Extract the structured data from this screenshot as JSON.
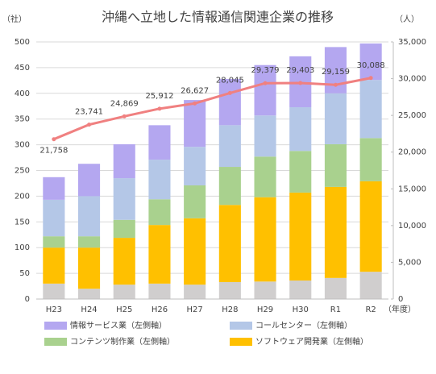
{
  "chart_data": {
    "type": "bar",
    "stacked": true,
    "title": "沖縄へ立地した情報通信関連企業の推移",
    "y_label": "（社）",
    "y2_label": "（人）",
    "x_label": "（年度）",
    "categories": [
      "H23",
      "H24",
      "H25",
      "H26",
      "H27",
      "H28",
      "H29",
      "H30",
      "R1",
      "R2"
    ],
    "ylim": [
      0,
      500
    ],
    "yticks": [
      0,
      50,
      100,
      150,
      200,
      250,
      300,
      350,
      400,
      450,
      500
    ],
    "y2lim": [
      0,
      35000
    ],
    "y2ticks": [
      0,
      {
        "value": 5000,
        "label": "5,000"
      },
      {
        "value": 10000,
        "label": "10,000"
      },
      {
        "value": 15000,
        "label": "15,000"
      },
      {
        "value": 20000,
        "label": "20,000"
      },
      {
        "value": 25000,
        "label": "25,000"
      },
      {
        "value": 30000,
        "label": "30,000"
      },
      {
        "value": 35000,
        "label": "35,000"
      }
    ],
    "series": [
      {
        "name": null,
        "color": "#d0cece",
        "values": [
          30,
          20,
          28,
          30,
          28,
          33,
          34,
          36,
          41,
          53
        ]
      },
      {
        "name": "ソフトウェア開発業（左側軸）",
        "color": "#ffc000",
        "values": [
          70,
          80,
          91,
          114,
          129,
          150,
          164,
          171,
          177,
          176
        ]
      },
      {
        "name": "コンテンツ制作業（左側軸）",
        "color": "#a9d18e",
        "values": [
          22,
          22,
          35,
          50,
          64,
          74,
          79,
          81,
          83,
          84
        ]
      },
      {
        "name": "コールセンター（左側軸）",
        "color": "#b4c7e7",
        "values": [
          71,
          78,
          81,
          77,
          75,
          81,
          80,
          85,
          99,
          113
        ]
      },
      {
        "name": "情報サービス業（左側軸）",
        "color": "#b4a7f0",
        "values": [
          44,
          63,
          66,
          67,
          91,
          90,
          98,
          99,
          90,
          71
        ]
      },
      {
        "name": null,
        "type": "line",
        "axis": "y2",
        "color": "#f08080",
        "values": [
          21758,
          23741,
          24869,
          25912,
          26627,
          28045,
          29379,
          29403,
          29159,
          30088
        ],
        "value_labels": [
          "21,758",
          "23,741",
          "24,869",
          "25,912",
          "26,627",
          "28,045",
          "29,379",
          "29,403",
          "29,159",
          "30,088"
        ]
      }
    ]
  }
}
